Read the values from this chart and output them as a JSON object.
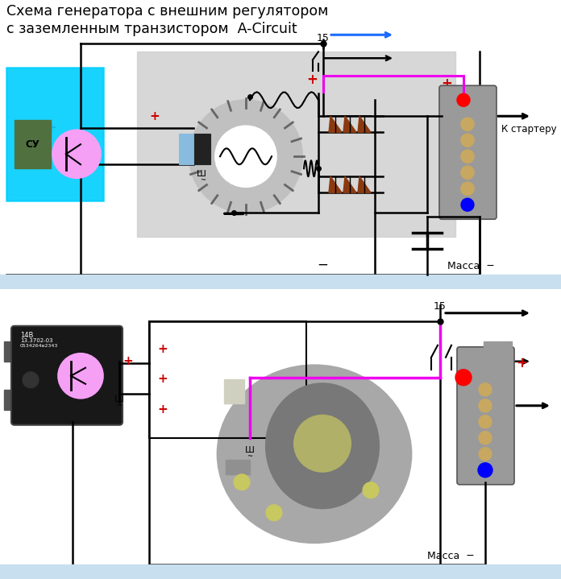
{
  "title_line1": "Схема генератора с внешним регулятором",
  "title_line2": "с заземленным транзистором  A-Circuit",
  "title_fontsize": 12.5,
  "bg_color": "#ffffff",
  "fig_width": 6.96,
  "fig_height": 7.19,
  "massa_text": "Масса  −",
  "label_15": "15",
  "label_k_starter": "К стартеру",
  "pink_color": "#ee00ee",
  "blue_arrow_color": "#1a6aff",
  "red_color": "#cc0000",
  "gray_box_color": "#d0d0d0",
  "cyan_box_color": "#00cfff",
  "bottom_bar_color": "#c8dff0",
  "bat_color": "#9a9a9a",
  "screw_color": "#c8a860",
  "diode_color": "#8b3a10"
}
